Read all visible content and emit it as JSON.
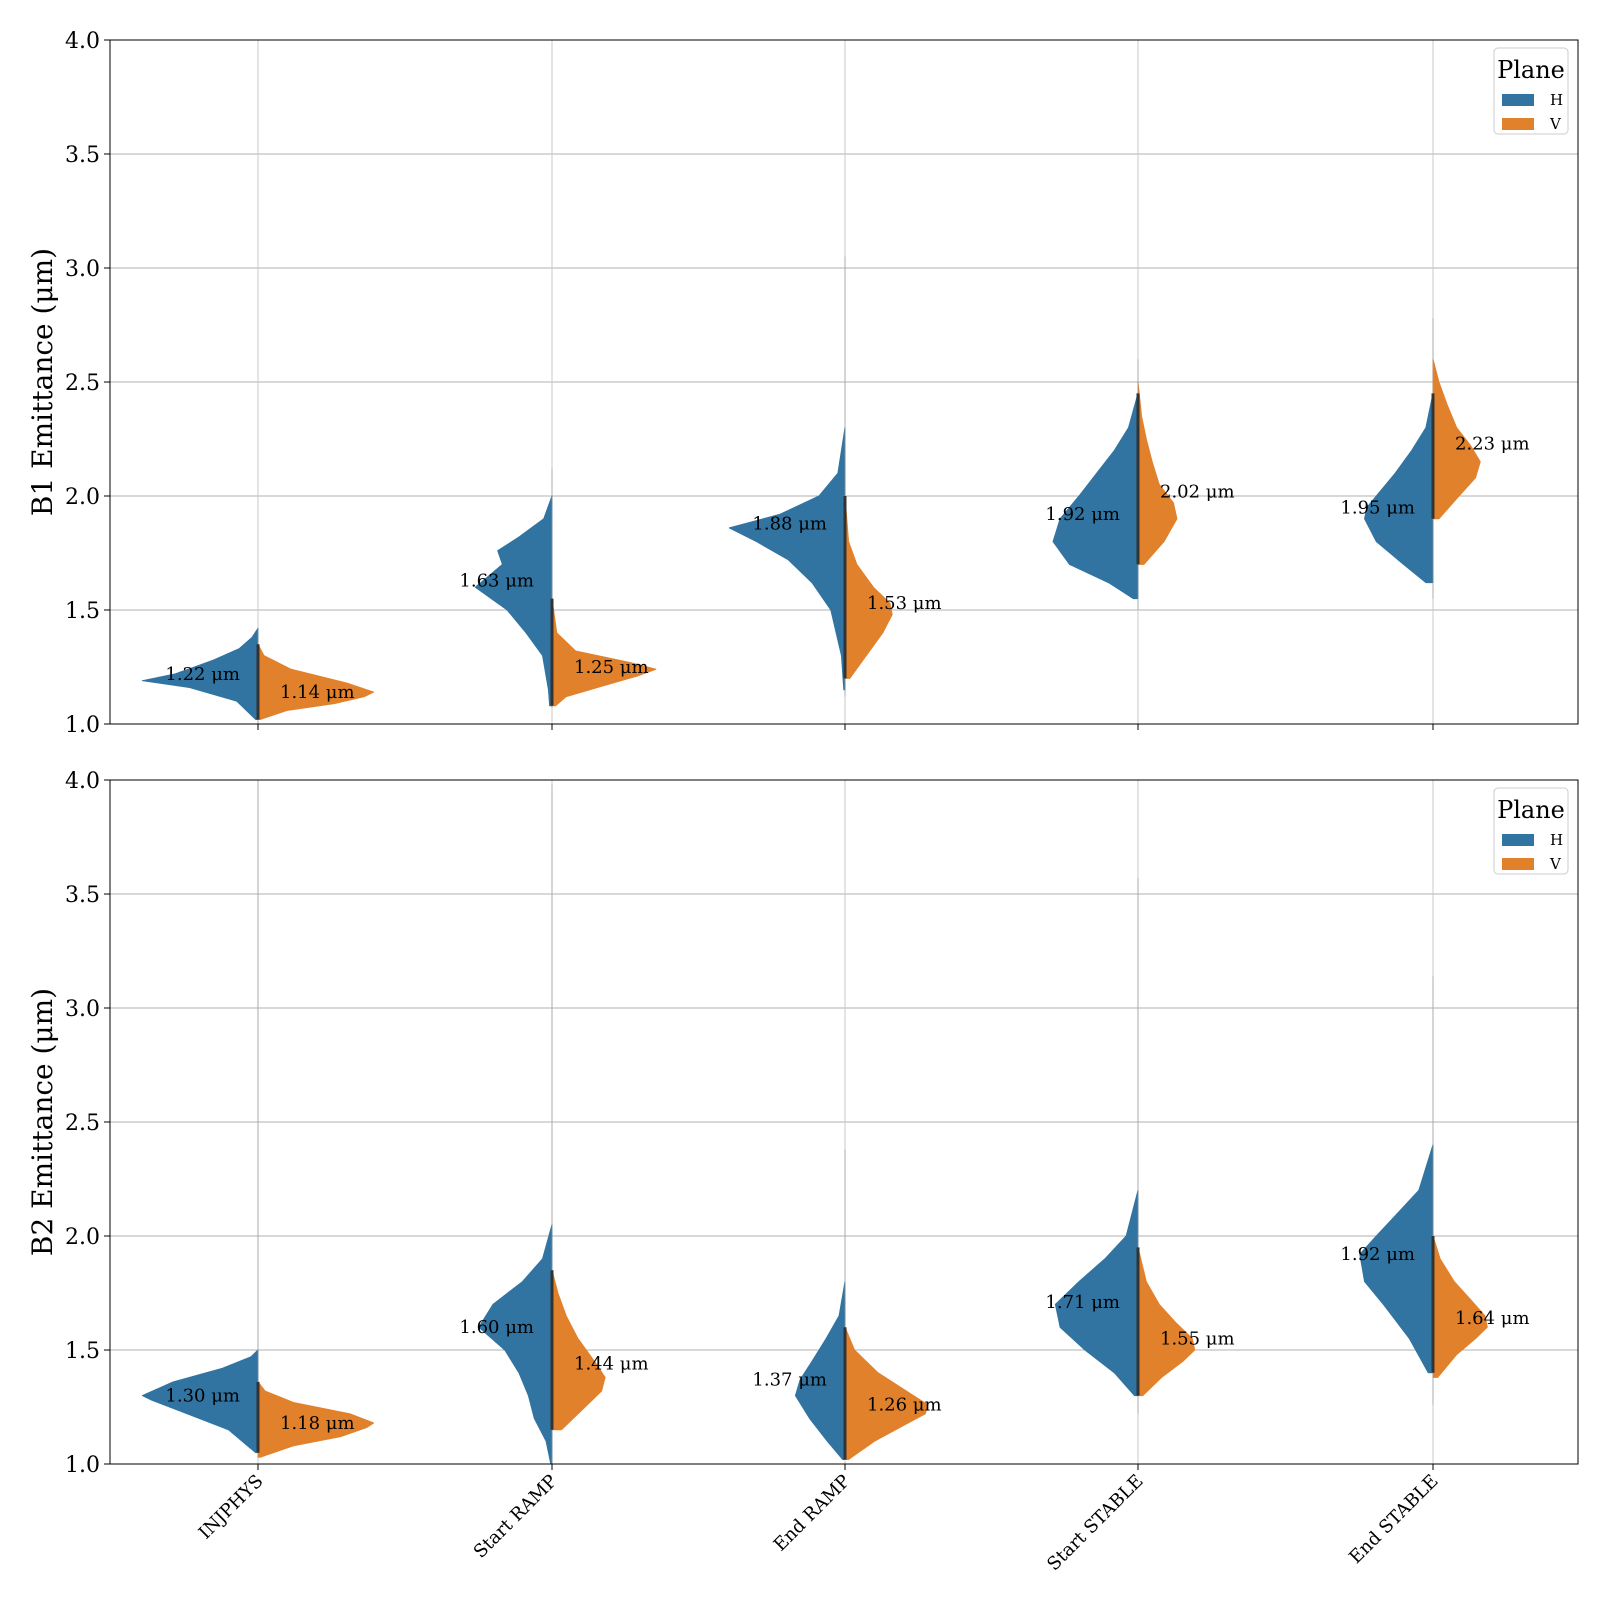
{
  "chart_data": [
    {
      "type": "violin",
      "ylabel": "B1 Emittance (μm)",
      "ylim": [
        1.0,
        4.0
      ],
      "yticks": [
        "1.0",
        "1.5",
        "2.0",
        "2.5",
        "3.0",
        "3.5",
        "4.0"
      ],
      "grid": true,
      "legend": {
        "title": "Plane",
        "placement": "upper-right",
        "entries": [
          "H",
          "V"
        ]
      },
      "categories": [
        "INJPHYS",
        "Start RAMP",
        "End RAMP",
        "Start STABLE",
        "End STABLE"
      ],
      "series": [
        {
          "name": "H",
          "color": "#3274a1",
          "medians": [
            1.22,
            1.63,
            1.88,
            1.92,
            1.95
          ],
          "median_labels": [
            "1.22 μm",
            "1.63 μm",
            "1.88 μm",
            "1.92 μm",
            "1.95 μm"
          ],
          "ranges": [
            [
              1.0,
              1.42
            ],
            [
              1.07,
              2.12
            ],
            [
              1.12,
              3.05
            ],
            [
              1.5,
              2.6
            ],
            [
              1.55,
              2.78
            ]
          ],
          "density_y": [
            [
              1.02,
              1.1,
              1.16,
              1.19,
              1.22,
              1.28,
              1.33,
              1.38,
              1.42
            ],
            [
              1.08,
              1.15,
              1.3,
              1.4,
              1.5,
              1.6,
              1.7,
              1.76,
              1.82,
              1.9,
              2.0
            ],
            [
              1.15,
              1.3,
              1.5,
              1.62,
              1.72,
              1.8,
              1.86,
              1.92,
              2.0,
              2.1,
              2.3
            ],
            [
              1.55,
              1.62,
              1.7,
              1.8,
              1.9,
              2.0,
              2.1,
              2.2,
              2.3,
              2.45
            ],
            [
              1.62,
              1.7,
              1.8,
              1.9,
              1.95,
              2.0,
              2.1,
              2.2,
              2.3,
              2.45
            ]
          ],
          "density_w": [
            [
              0.02,
              0.18,
              0.58,
              0.98,
              0.7,
              0.38,
              0.16,
              0.05,
              0.0
            ],
            [
              0.02,
              0.03,
              0.08,
              0.22,
              0.38,
              0.65,
              0.42,
              0.46,
              0.28,
              0.07,
              0.0
            ],
            [
              0.01,
              0.03,
              0.12,
              0.28,
              0.48,
              0.75,
              0.98,
              0.55,
              0.22,
              0.06,
              0.0
            ],
            [
              0.04,
              0.25,
              0.58,
              0.72,
              0.66,
              0.5,
              0.35,
              0.2,
              0.08,
              0.0
            ],
            [
              0.06,
              0.25,
              0.48,
              0.58,
              0.56,
              0.48,
              0.32,
              0.18,
              0.06,
              0.0
            ]
          ]
        },
        {
          "name": "V",
          "color": "#e1812c",
          "medians": [
            1.14,
            1.25,
            1.53,
            2.02,
            2.23
          ],
          "median_labels": [
            "1.14 μm",
            "1.25 μm",
            "1.53 μm",
            "2.02 μm",
            "2.23 μm"
          ],
          "ranges": [
            [
              1.0,
              1.42
            ],
            [
              1.07,
              2.12
            ],
            [
              1.1,
              3.98
            ],
            [
              1.5,
              2.6
            ],
            [
              1.55,
              2.78
            ]
          ],
          "density_y": [
            [
              1.02,
              1.06,
              1.09,
              1.12,
              1.14,
              1.18,
              1.24,
              1.3,
              1.35
            ],
            [
              1.08,
              1.12,
              1.17,
              1.21,
              1.24,
              1.27,
              1.32,
              1.4,
              1.55
            ],
            [
              1.2,
              1.3,
              1.4,
              1.48,
              1.53,
              1.6,
              1.7,
              1.8,
              2.0
            ],
            [
              1.7,
              1.8,
              1.9,
              1.97,
              2.05,
              2.15,
              2.25,
              2.35,
              2.5
            ],
            [
              1.9,
              2.0,
              2.08,
              2.15,
              2.22,
              2.3,
              2.4,
              2.5,
              2.6
            ]
          ],
          "density_w": [
            [
              0.02,
              0.25,
              0.65,
              0.9,
              0.98,
              0.75,
              0.28,
              0.05,
              0.0
            ],
            [
              0.03,
              0.12,
              0.45,
              0.72,
              0.88,
              0.66,
              0.2,
              0.04,
              0.0
            ],
            [
              0.04,
              0.18,
              0.32,
              0.4,
              0.38,
              0.24,
              0.1,
              0.03,
              0.0
            ],
            [
              0.05,
              0.22,
              0.33,
              0.3,
              0.18,
              0.12,
              0.07,
              0.03,
              0.0
            ],
            [
              0.05,
              0.22,
              0.36,
              0.4,
              0.32,
              0.2,
              0.12,
              0.05,
              0.0
            ]
          ]
        }
      ]
    },
    {
      "type": "violin",
      "ylabel": "B2 Emittance (μm)",
      "ylim": [
        1.0,
        4.0
      ],
      "yticks": [
        "1.0",
        "1.5",
        "2.0",
        "2.5",
        "3.0",
        "3.5",
        "4.0"
      ],
      "grid": true,
      "legend": {
        "title": "Plane",
        "placement": "upper-right",
        "entries": [
          "H",
          "V"
        ]
      },
      "categories": [
        "INJPHYS",
        "Start RAMP",
        "End RAMP",
        "Start STABLE",
        "End STABLE"
      ],
      "series": [
        {
          "name": "H",
          "color": "#3274a1",
          "medians": [
            1.3,
            1.6,
            1.37,
            1.71,
            1.92
          ],
          "median_labels": [
            "1.30 μm",
            "1.60 μm",
            "1.37 μm",
            "1.71 μm",
            "1.92 μm"
          ],
          "ranges": [
            [
              1.05,
              4.0
            ],
            [
              1.0,
              3.98
            ],
            [
              1.02,
              2.38
            ],
            [
              1.22,
              3.57
            ],
            [
              1.26,
              3.14
            ]
          ],
          "density_y": [
            [
              1.05,
              1.15,
              1.22,
              1.28,
              1.3,
              1.36,
              1.42,
              1.47,
              1.5
            ],
            [
              1.0,
              1.1,
              1.2,
              1.3,
              1.4,
              1.5,
              1.6,
              1.7,
              1.8,
              1.9,
              2.05
            ],
            [
              1.02,
              1.1,
              1.2,
              1.3,
              1.37,
              1.45,
              1.55,
              1.65,
              1.8
            ],
            [
              1.3,
              1.4,
              1.5,
              1.6,
              1.7,
              1.8,
              1.9,
              2.0,
              2.2
            ],
            [
              1.4,
              1.55,
              1.7,
              1.8,
              1.92,
              2.0,
              2.1,
              2.2,
              2.4
            ]
          ],
          "density_w": [
            [
              0.02,
              0.25,
              0.6,
              0.9,
              0.98,
              0.72,
              0.3,
              0.06,
              0.0
            ],
            [
              0.01,
              0.05,
              0.15,
              0.2,
              0.28,
              0.4,
              0.62,
              0.5,
              0.25,
              0.08,
              0.0
            ],
            [
              0.02,
              0.15,
              0.3,
              0.42,
              0.38,
              0.28,
              0.16,
              0.05,
              0.0
            ],
            [
              0.03,
              0.2,
              0.45,
              0.66,
              0.7,
              0.5,
              0.28,
              0.1,
              0.0
            ],
            [
              0.04,
              0.2,
              0.42,
              0.58,
              0.62,
              0.48,
              0.3,
              0.12,
              0.0
            ]
          ]
        },
        {
          "name": "V",
          "color": "#e1812c",
          "medians": [
            1.18,
            1.44,
            1.26,
            1.55,
            1.64
          ],
          "median_labels": [
            "1.18 μm",
            "1.44 μm",
            "1.26 μm",
            "1.55 μm",
            "1.64 μm"
          ],
          "ranges": [
            [
              1.03,
              1.5
            ],
            [
              1.0,
              3.98
            ],
            [
              1.02,
              2.38
            ],
            [
              1.22,
              3.57
            ],
            [
              1.26,
              3.14
            ]
          ],
          "density_y": [
            [
              1.03,
              1.08,
              1.12,
              1.16,
              1.18,
              1.22,
              1.27,
              1.32,
              1.36
            ],
            [
              1.15,
              1.25,
              1.32,
              1.38,
              1.45,
              1.55,
              1.65,
              1.75,
              1.85
            ],
            [
              1.02,
              1.1,
              1.17,
              1.22,
              1.26,
              1.32,
              1.4,
              1.5,
              1.6
            ],
            [
              1.3,
              1.38,
              1.45,
              1.5,
              1.55,
              1.62,
              1.7,
              1.8,
              1.95
            ],
            [
              1.38,
              1.48,
              1.55,
              1.6,
              1.65,
              1.72,
              1.8,
              1.9,
              2.0
            ]
          ],
          "density_w": [
            [
              0.02,
              0.3,
              0.7,
              0.92,
              0.98,
              0.78,
              0.3,
              0.06,
              0.0
            ],
            [
              0.08,
              0.28,
              0.42,
              0.45,
              0.36,
              0.22,
              0.12,
              0.05,
              0.0
            ],
            [
              0.03,
              0.25,
              0.5,
              0.68,
              0.7,
              0.52,
              0.28,
              0.08,
              0.0
            ],
            [
              0.04,
              0.2,
              0.38,
              0.48,
              0.46,
              0.32,
              0.18,
              0.07,
              0.0
            ],
            [
              0.04,
              0.2,
              0.36,
              0.46,
              0.44,
              0.32,
              0.18,
              0.06,
              0.0
            ]
          ]
        }
      ]
    }
  ]
}
